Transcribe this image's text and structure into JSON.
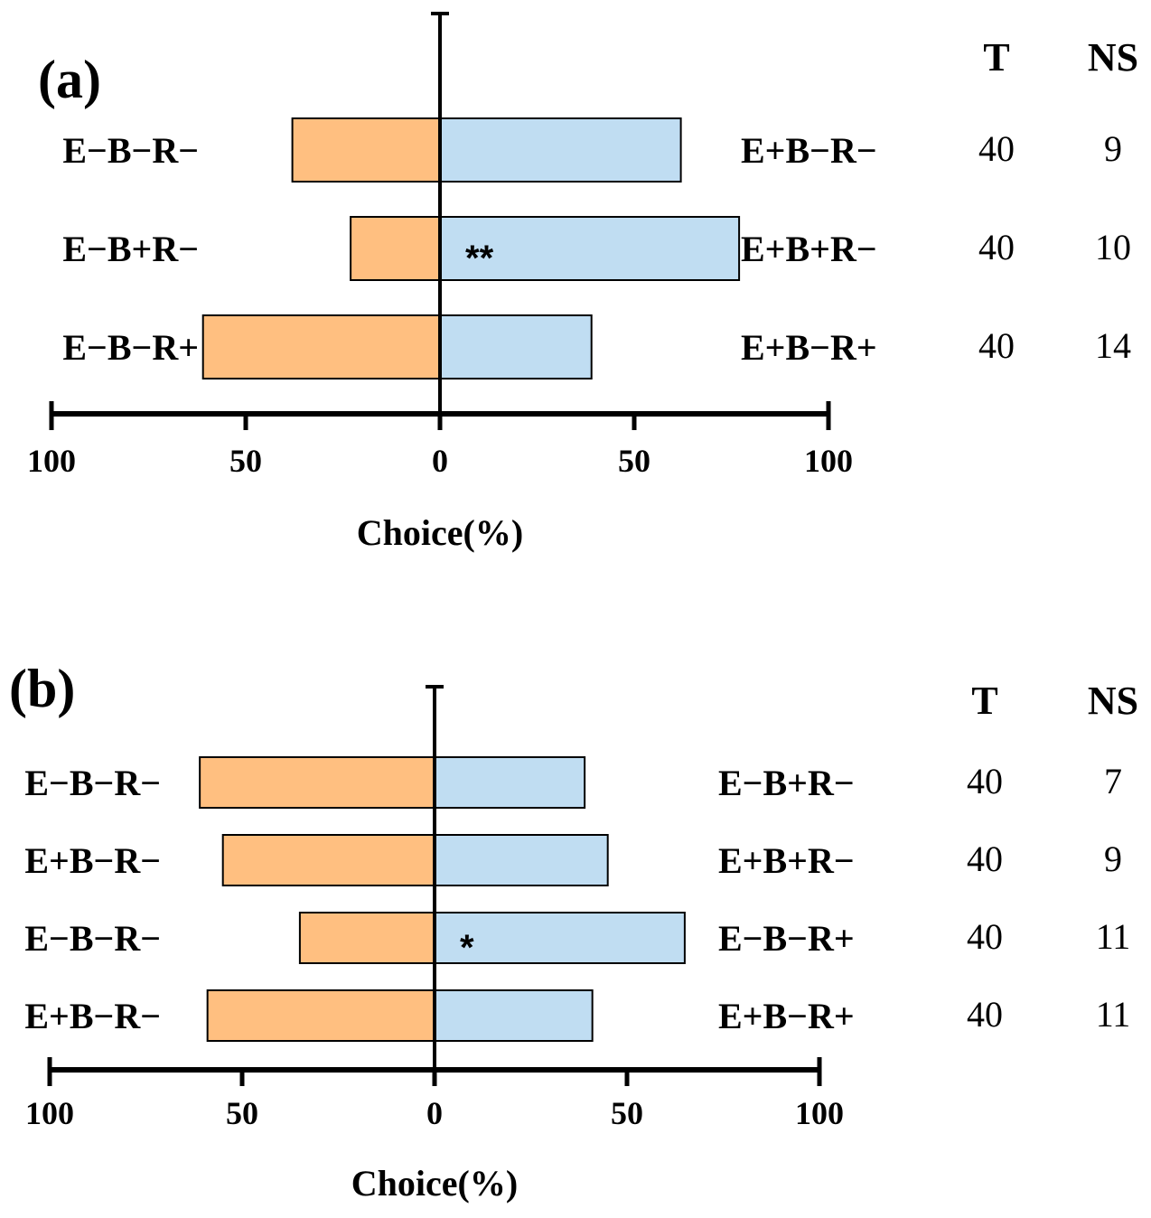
{
  "colors": {
    "left_bar": "#FFBF80",
    "right_bar": "#C0DDF2",
    "stroke": "#000000"
  },
  "chart_data": [
    {
      "type": "bar",
      "panel": "(a)",
      "orientation": "horizontal-diverging",
      "xlabel": "Choice(%)",
      "xlim": [
        -100,
        100
      ],
      "xticks": [
        "100",
        "50",
        "0",
        "50",
        "100"
      ],
      "col_headers": [
        "T",
        "NS"
      ],
      "rows": [
        {
          "left_label": "E−B−R−",
          "right_label": "E+B−R−",
          "left": 38,
          "right": 62,
          "sig": "",
          "T": "40",
          "NS": "9"
        },
        {
          "left_label": "E−B+R−",
          "right_label": "E+B+R−",
          "left": 23,
          "right": 77,
          "sig": "**",
          "T": "40",
          "NS": "10"
        },
        {
          "left_label": "E−B−R+",
          "right_label": "E+B−R+",
          "left": 61,
          "right": 39,
          "sig": "",
          "T": "40",
          "NS": "14"
        }
      ]
    },
    {
      "type": "bar",
      "panel": "(b)",
      "orientation": "horizontal-diverging",
      "xlabel": "Choice(%)",
      "xlim": [
        -100,
        100
      ],
      "xticks": [
        "100",
        "50",
        "0",
        "50",
        "100"
      ],
      "col_headers": [
        "T",
        "NS"
      ],
      "rows": [
        {
          "left_label": "E−B−R−",
          "right_label": "E−B+R−",
          "left": 61,
          "right": 39,
          "sig": "",
          "T": "40",
          "NS": "7"
        },
        {
          "left_label": "E+B−R−",
          "right_label": "E+B+R−",
          "left": 55,
          "right": 45,
          "sig": "",
          "T": "40",
          "NS": "9"
        },
        {
          "left_label": "E−B−R−",
          "right_label": "E−B−R+",
          "left": 35,
          "right": 65,
          "sig": "*",
          "T": "40",
          "NS": "11"
        },
        {
          "left_label": "E+B−R−",
          "right_label": "E+B−R+",
          "left": 59,
          "right": 41,
          "sig": "",
          "T": "40",
          "NS": "11"
        }
      ]
    }
  ]
}
